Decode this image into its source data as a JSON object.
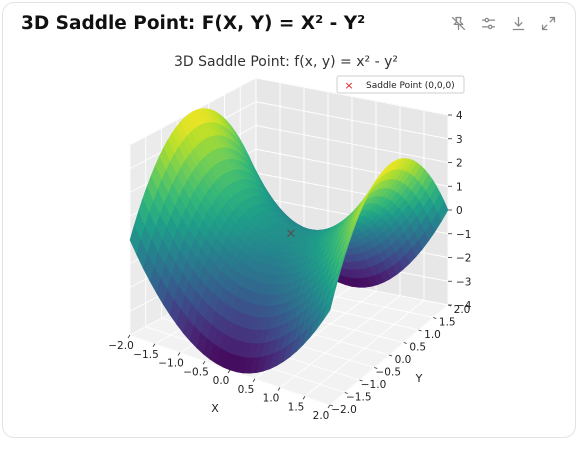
{
  "header": {
    "title": "3D Saddle Point: F(X, Y) = X² - Y²",
    "tools": [
      {
        "name": "pin-off-icon"
      },
      {
        "name": "sliders-icon"
      },
      {
        "name": "download-icon"
      },
      {
        "name": "expand-icon"
      }
    ]
  },
  "chart_data": {
    "type": "surface3d",
    "title": "3D Saddle Point: f(x, y) = x² - y²",
    "function": "x^2 - y^2",
    "xlabel": "X",
    "ylabel": "Y",
    "zlabel": "",
    "xlim": [
      -2.0,
      2.0
    ],
    "ylim": [
      -2.0,
      2.0
    ],
    "zlim": [
      -4,
      4
    ],
    "x_ticks": [
      "−2.0",
      "−1.5",
      "−1.0",
      "−0.5",
      "0.0",
      "0.5",
      "1.0",
      "1.5",
      "2.0"
    ],
    "y_ticks": [
      "−2.0",
      "−1.5",
      "−1.0",
      "−0.5",
      "0.0",
      "0.5",
      "1.0",
      "1.5",
      "2.0"
    ],
    "z_ticks": [
      "−4",
      "−3",
      "−2",
      "−1",
      "0",
      "1",
      "2",
      "3",
      "4"
    ],
    "colormap": "viridis",
    "marker": {
      "x": 0,
      "y": 0,
      "z": 0,
      "symbol": "x",
      "color": "#e02020",
      "label": "Saddle Point (0,0,0)"
    },
    "legend": {
      "entries": [
        "Saddle Point (0,0,0)"
      ],
      "placement": "top-right"
    }
  }
}
